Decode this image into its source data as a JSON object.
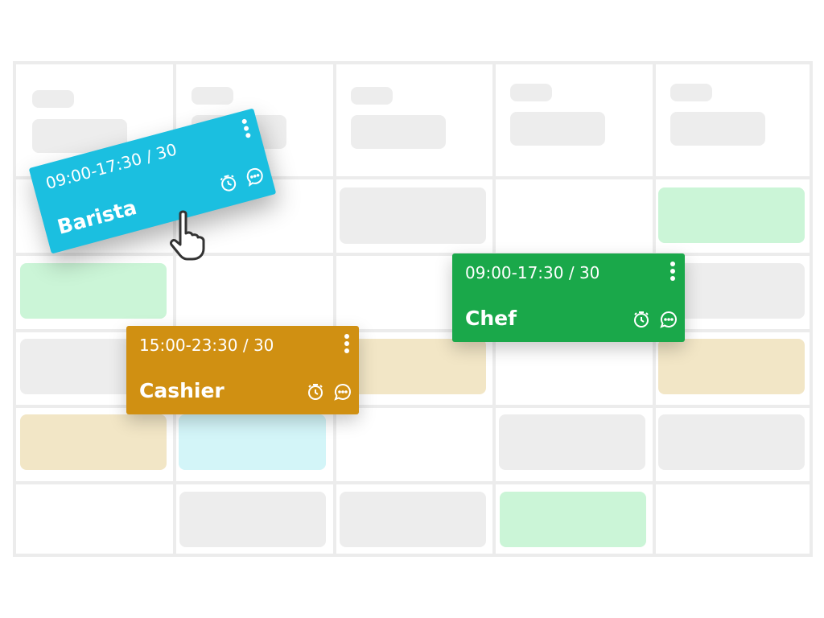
{
  "colors": {
    "barista": "#1bbfe0",
    "cashier": "#d09012",
    "chef": "#1aa84a",
    "grid": "#ececec"
  },
  "shifts": [
    {
      "time": "09:00-17:30 / 30",
      "role": "Barista",
      "color": "#1bbfe0",
      "state": "dragging"
    },
    {
      "time": "15:00-23:30 / 30",
      "role": "Cashier",
      "color": "#d09012"
    },
    {
      "time": "09:00-17:30 / 30",
      "role": "Chef",
      "color": "#1aa84a"
    }
  ],
  "icons": [
    "more-vertical-icon",
    "stopwatch-icon",
    "comment-icon",
    "hand-pointer-icon"
  ]
}
